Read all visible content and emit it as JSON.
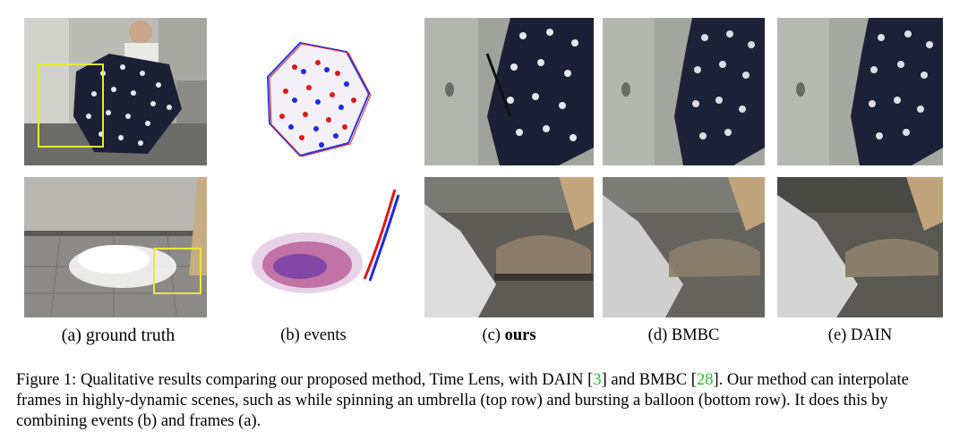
{
  "figure": {
    "panels": [
      {
        "id": "a",
        "prefix": "(a) ",
        "label": "ground truth",
        "bold": false
      },
      {
        "id": "b",
        "prefix": "(b) ",
        "label": "events",
        "bold": false
      },
      {
        "id": "c",
        "prefix": "(c) ",
        "label": "ours",
        "bold": true
      },
      {
        "id": "d",
        "prefix": "(d) ",
        "label": "BMBC",
        "bold": false
      },
      {
        "id": "e",
        "prefix": "(e) ",
        "label": "DAIN",
        "bold": false
      }
    ],
    "colors": {
      "highlight_box": "#e8e83a",
      "event_pos": "#e01818",
      "event_neg": "#1a2be0",
      "citation": "#1fc01f"
    }
  },
  "caption": {
    "part1": "Figure 1: Qualitative results comparing our proposed method, Time Lens, with DAIN [",
    "cite1": "3",
    "part2": "] and BMBC [",
    "cite2": "28",
    "part3": "]. Our method can interpolate frames in highly-dynamic scenes, such as while spinning an umbrella (top row) and bursting a balloon (bottom row). It does this by combining events (b) and frames (a)."
  }
}
